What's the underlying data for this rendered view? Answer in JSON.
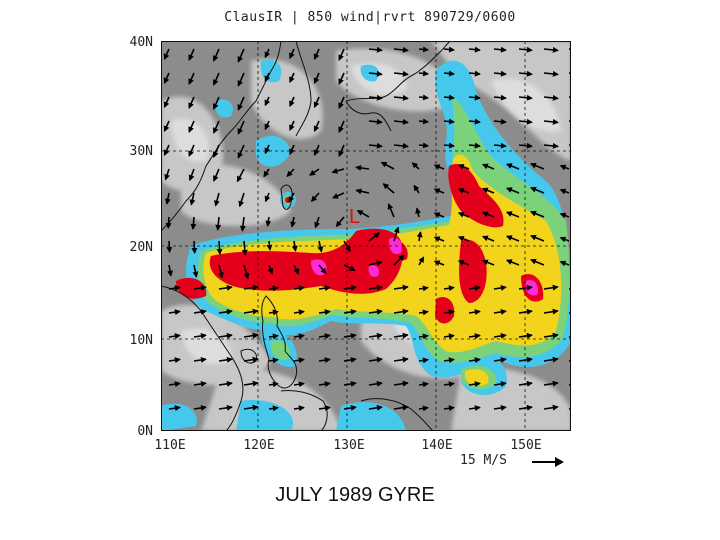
{
  "figure": {
    "title": "ClausIR | 850 wind|rvrt 890729/0600",
    "latitude_labels": [
      "40N",
      "30N",
      "20N",
      "10N",
      "0N"
    ],
    "longitude_labels": [
      "110E",
      "120E",
      "130E",
      "140E",
      "150E"
    ],
    "low_marker": "L",
    "wind_reference": "15 M/S",
    "caption": "JULY 1989 GYRE"
  },
  "map": {
    "region": {
      "lon_range": [
        110,
        156
      ],
      "lat_range": [
        0,
        40
      ]
    },
    "colors": {
      "background_gray": "#8c8c8c",
      "light_gray": "#d2d2d2",
      "coast": "#111111",
      "cloud_cyan": "#46c8ec",
      "cloud_green": "#7cd27a",
      "cloud_yellow": "#f3d41d",
      "cloud_red": "#e4001a",
      "cloud_magenta": "#ff2ad8",
      "low_marker": "#e01010",
      "vector": "#000000"
    }
  }
}
